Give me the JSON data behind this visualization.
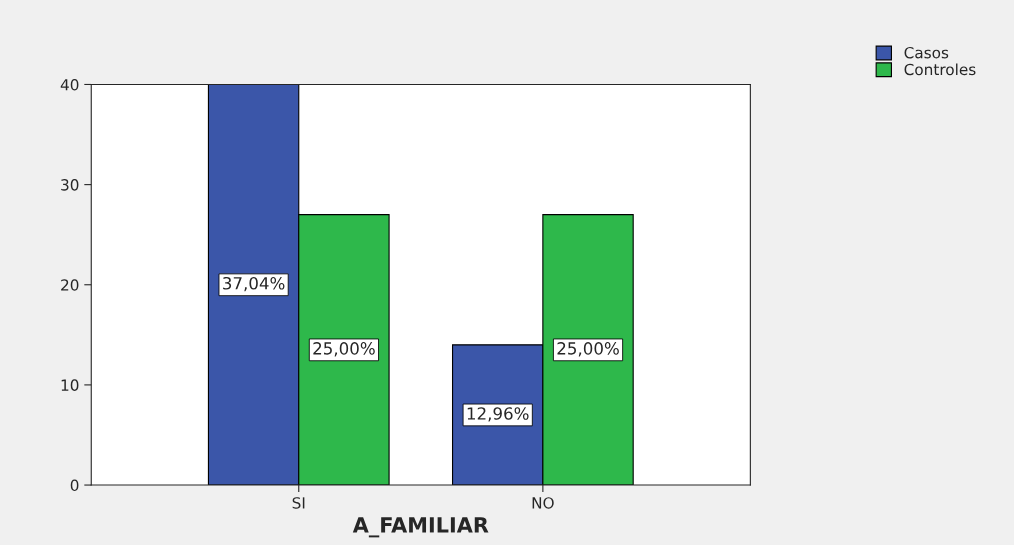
{
  "chart_data": {
    "type": "bar",
    "xlabel": "A_FAMILIAR",
    "categories": [
      "SI",
      "NO"
    ],
    "series": [
      {
        "name": "Casos",
        "color": "#3b56a9",
        "values": [
          40,
          14
        ]
      },
      {
        "name": "Controles",
        "color": "#2eb84b",
        "values": [
          27,
          27
        ]
      }
    ],
    "annotations": [
      "37,04%",
      "12,96%",
      "25,00%",
      "25,00%"
    ],
    "ylim": [
      0,
      40
    ],
    "yticks": [
      0,
      10,
      20,
      30,
      40
    ],
    "grid": false,
    "legend": "top right"
  }
}
